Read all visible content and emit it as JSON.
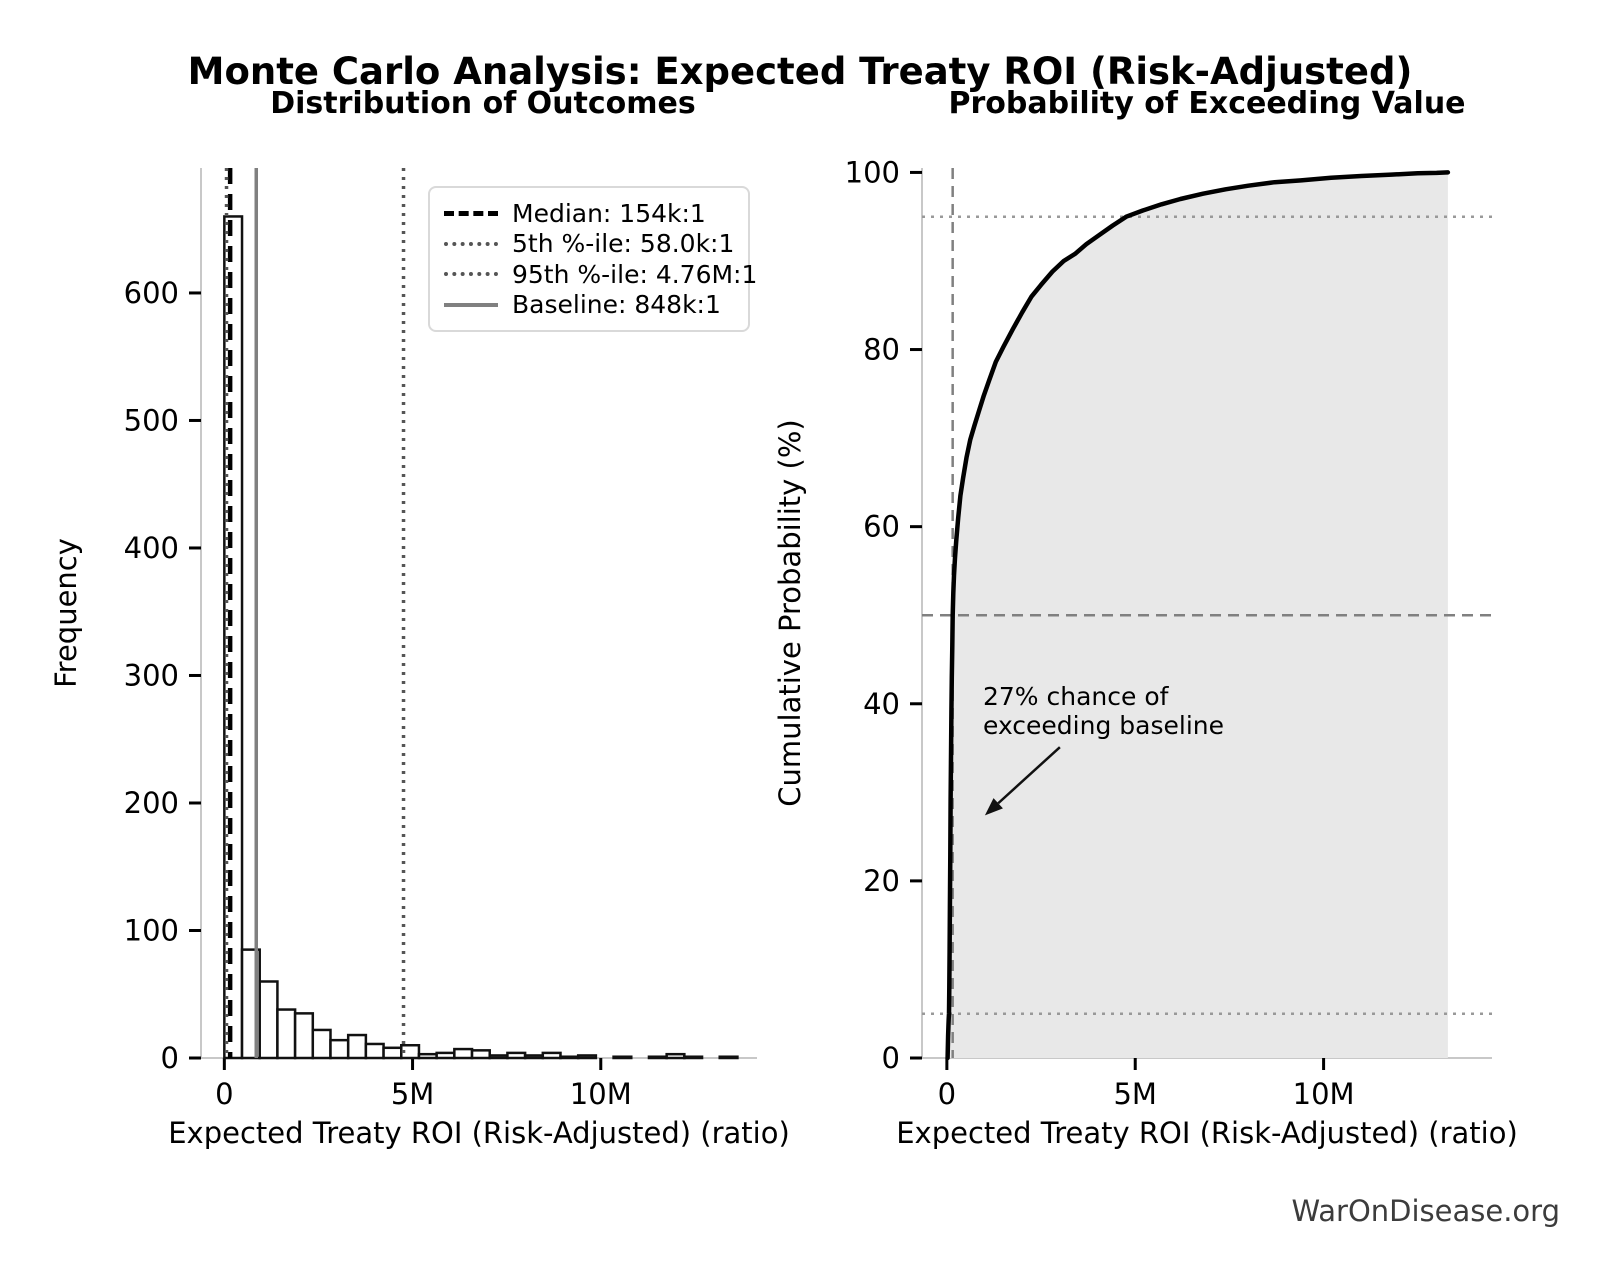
{
  "page": {
    "main_title": "Monte Carlo Analysis: Expected Treaty ROI (Risk-Adjusted)",
    "watermark": "WarOnDisease.org"
  },
  "chart_data": [
    {
      "type": "bar",
      "subtype": "histogram",
      "title": "Distribution of Outcomes",
      "xlabel": "Expected Treaty ROI (Risk-Adjusted) (ratio)",
      "ylabel": "Frequency",
      "xlim": [
        -620000,
        14150000
      ],
      "ylim": [
        0,
        698
      ],
      "bin_start": 0,
      "bin_width": 470000,
      "counts": [
        660,
        85,
        60,
        38,
        35,
        22,
        14,
        18,
        11,
        8,
        10,
        3,
        4,
        7,
        6,
        2,
        4,
        2,
        4,
        1,
        2,
        0,
        1,
        0,
        1,
        3,
        1,
        0,
        1
      ],
      "bar_fill": "#ffffff",
      "bar_edge": "#111111",
      "xticks": [
        {
          "v": 0,
          "label": "0"
        },
        {
          "v": 5000000,
          "label": "5M"
        },
        {
          "v": 10000000,
          "label": "10M"
        }
      ],
      "yticks": [
        {
          "v": 0,
          "label": "0"
        },
        {
          "v": 100,
          "label": "100"
        },
        {
          "v": 200,
          "label": "200"
        },
        {
          "v": 300,
          "label": "300"
        },
        {
          "v": 400,
          "label": "400"
        },
        {
          "v": 500,
          "label": "500"
        },
        {
          "v": 600,
          "label": "600"
        }
      ],
      "vlines": [
        {
          "x": 154000,
          "style": "dashed",
          "color": "#000000",
          "width": 4.5,
          "label": "Median: 154k:1"
        },
        {
          "x": 58000,
          "style": "dotted",
          "color": "#555555",
          "width": 3.5,
          "label": "5th %-ile: 58.0k:1"
        },
        {
          "x": 4760000,
          "style": "dotted",
          "color": "#555555",
          "width": 3.5,
          "label": "95th %-ile: 4.76M:1"
        },
        {
          "x": 848000,
          "style": "solid",
          "color": "#808080",
          "width": 3.5,
          "label": "Baseline: 848k:1"
        }
      ],
      "legend_position": "upper right",
      "grid": false
    },
    {
      "type": "line",
      "subtype": "cdf",
      "title": "Probability of Exceeding Value",
      "xlabel": "Expected Treaty ROI (Risk-Adjusted) (ratio)",
      "ylabel": "Cumulative Probability (%)",
      "xlim": [
        -660000,
        14470000
      ],
      "ylim": [
        0,
        100.5
      ],
      "line_color": "#000000",
      "line_width": 4.5,
      "fill_color": "#e8e8e8",
      "points": [
        [
          20000,
          0
        ],
        [
          25000,
          1
        ],
        [
          32000,
          2.5
        ],
        [
          40000,
          3.5
        ],
        [
          50000,
          4.4
        ],
        [
          58000,
          5
        ],
        [
          65000,
          8
        ],
        [
          72000,
          12
        ],
        [
          80000,
          17
        ],
        [
          90000,
          23
        ],
        [
          100000,
          29
        ],
        [
          110000,
          34
        ],
        [
          120000,
          39
        ],
        [
          132000,
          43
        ],
        [
          143000,
          46.5
        ],
        [
          154000,
          50
        ],
        [
          170000,
          52.5
        ],
        [
          190000,
          54.5
        ],
        [
          215000,
          56.5
        ],
        [
          250000,
          58.5
        ],
        [
          300000,
          61
        ],
        [
          360000,
          63.5
        ],
        [
          430000,
          65.5
        ],
        [
          520000,
          67.8
        ],
        [
          620000,
          69.8
        ],
        [
          730000,
          71.4
        ],
        [
          848000,
          73
        ],
        [
          980000,
          74.8
        ],
        [
          1120000,
          76.5
        ],
        [
          1300000,
          78.6
        ],
        [
          1500000,
          80.3
        ],
        [
          1750000,
          82.3
        ],
        [
          2000000,
          84.2
        ],
        [
          2250000,
          86
        ],
        [
          2500000,
          87.3
        ],
        [
          2800000,
          88.8
        ],
        [
          3100000,
          90
        ],
        [
          3400000,
          90.8
        ],
        [
          3700000,
          91.9
        ],
        [
          4000000,
          92.8
        ],
        [
          4400000,
          94
        ],
        [
          4760000,
          95
        ],
        [
          5200000,
          95.7
        ],
        [
          5700000,
          96.4
        ],
        [
          6200000,
          97
        ],
        [
          6800000,
          97.6
        ],
        [
          7400000,
          98.1
        ],
        [
          8000000,
          98.5
        ],
        [
          8700000,
          98.9
        ],
        [
          9400000,
          99.1
        ],
        [
          10200000,
          99.4
        ],
        [
          11000000,
          99.6
        ],
        [
          11800000,
          99.75
        ],
        [
          12500000,
          99.9
        ],
        [
          13000000,
          99.95
        ],
        [
          13300000,
          100
        ]
      ],
      "xticks": [
        {
          "v": 0,
          "label": "0"
        },
        {
          "v": 5000000,
          "label": "5M"
        },
        {
          "v": 10000000,
          "label": "10M"
        }
      ],
      "yticks": [
        {
          "v": 0,
          "label": "0"
        },
        {
          "v": 20,
          "label": "20"
        },
        {
          "v": 40,
          "label": "40"
        },
        {
          "v": 60,
          "label": "60"
        },
        {
          "v": 80,
          "label": "80"
        },
        {
          "v": 100,
          "label": "100"
        }
      ],
      "hlines": [
        {
          "y": 50,
          "style": "dashed",
          "color": "#808080",
          "width": 2.5
        },
        {
          "y": 95,
          "style": "dotted",
          "color": "#999999",
          "width": 2.5
        },
        {
          "y": 5,
          "style": "dotted",
          "color": "#999999",
          "width": 2.5
        }
      ],
      "vlines": [
        {
          "x": 154000,
          "style": "dashed",
          "color": "#808080",
          "width": 2.5
        }
      ],
      "annotation": {
        "line1": "27% chance of",
        "line2": "exceeding baseline",
        "arrow_from": [
          3000000,
          35.1
        ],
        "arrow_to": [
          1010000,
          27.4
        ],
        "arrow_color": "#111111"
      },
      "grid": false
    }
  ]
}
